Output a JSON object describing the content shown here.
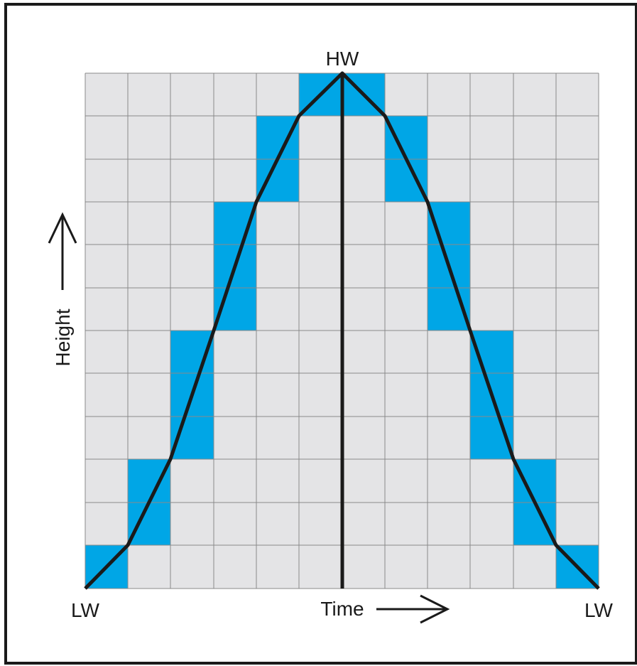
{
  "labels": {
    "high_water": "HW",
    "low_water_start": "LW",
    "low_water_end": "LW",
    "x_axis": "Time",
    "y_axis": "Height"
  }
}
